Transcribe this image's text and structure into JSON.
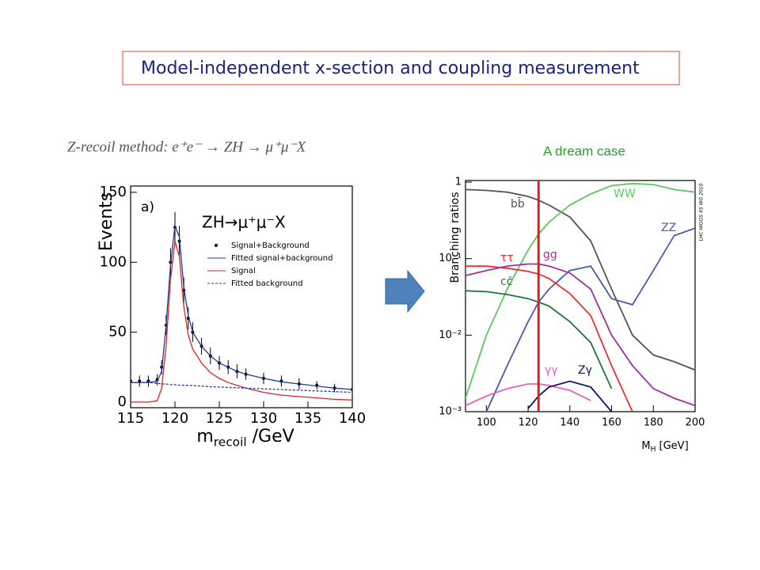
{
  "header": {
    "title": "Model-independent x-section and coupling measurement",
    "method": "Z-recoil method: e⁺e⁻ → ZH → μ⁺μ⁻X",
    "dream": "A dream case"
  },
  "chart_data": [
    {
      "type": "line",
      "ylabel": "Events",
      "xlabel_parts": [
        "m",
        "recoil",
        " /GeV"
      ],
      "annotations": [
        "a)",
        "ZH→μ⁺μ⁻X"
      ],
      "x": [
        115,
        116,
        117,
        118,
        118.5,
        119,
        119.5,
        120,
        120.5,
        121,
        121.5,
        122,
        123,
        124,
        125,
        126,
        127,
        128,
        130,
        132,
        134,
        136,
        138,
        140
      ],
      "xlim": [
        115,
        140
      ],
      "xticks": [
        115,
        120,
        125,
        130,
        135,
        140
      ],
      "ylim": [
        -4,
        154.5
      ],
      "yticks": [
        0,
        50,
        100,
        150
      ],
      "series": [
        {
          "name": "Signal+Background",
          "color": "#000000",
          "style": "points",
          "values": [
            15,
            15,
            15,
            16,
            25,
            55,
            100,
            125,
            115,
            80,
            60,
            50,
            40,
            33,
            28,
            25,
            22,
            20,
            17,
            15,
            13,
            12,
            10,
            9
          ],
          "errors": [
            4,
            4,
            4,
            4,
            5,
            7,
            10,
            11,
            11,
            9,
            8,
            7,
            6,
            6,
            5,
            5,
            5,
            4,
            4,
            4,
            4,
            3,
            3,
            3
          ]
        },
        {
          "name": "Fitted signal+background",
          "color": "#1f3a9e",
          "style": "line",
          "values": [
            14,
            14,
            14,
            15,
            22,
            55,
            98,
            126,
            118,
            82,
            62,
            50,
            40,
            33,
            28,
            25,
            22,
            20,
            17,
            14.5,
            13,
            11.5,
            10,
            9
          ]
        },
        {
          "name": "Signal",
          "color": "#e02020",
          "style": "line",
          "values": [
            0,
            0,
            0,
            1,
            10,
            40,
            88,
            115,
            104,
            68,
            48,
            38,
            28,
            21,
            17,
            14,
            12,
            10,
            7,
            5,
            4,
            3,
            2,
            1.5
          ]
        },
        {
          "name": "Fitted background",
          "color": "#1f3a9e",
          "style": "dashed",
          "values": [
            14,
            14,
            14,
            13.5,
            13,
            13,
            12.5,
            12.5,
            12.2,
            12,
            12,
            11.8,
            11.5,
            11,
            10.8,
            10.5,
            10.2,
            10,
            9.5,
            9,
            8.5,
            8,
            7.5,
            7
          ]
        }
      ]
    },
    {
      "type": "line",
      "log_y": true,
      "ylabel": "Branching ratios",
      "xlabel_parts": [
        "M",
        "H",
        " [GeV]"
      ],
      "side_note": "LHC HIGGS XS WG 2010",
      "vline_x": 125,
      "vline_color": "#e02020",
      "x": [
        90,
        100,
        110,
        120,
        125,
        130,
        140,
        150,
        160,
        170,
        180,
        190,
        200
      ],
      "xlim": [
        90,
        200
      ],
      "xticks": [
        100,
        120,
        140,
        160,
        180,
        200
      ],
      "ylim": [
        0.001,
        1.05
      ],
      "yticks": [
        {
          "value": 0.001,
          "label": "10⁻³"
        },
        {
          "value": 0.01,
          "label": "10⁻²"
        },
        {
          "value": 0.1,
          "label": "10⁻¹"
        },
        1
      ],
      "series": [
        {
          "name": "bb̄",
          "color": "#555555",
          "values": [
            0.8,
            0.78,
            0.74,
            0.65,
            0.58,
            0.5,
            0.35,
            0.17,
            0.04,
            0.01,
            0.0055,
            0.0045,
            0.0035
          ]
        },
        {
          "name": "WW",
          "color": "#5cc85c",
          "values": [
            0.0015,
            0.01,
            0.04,
            0.13,
            0.21,
            0.3,
            0.5,
            0.7,
            0.9,
            0.96,
            0.93,
            0.8,
            0.74
          ]
        },
        {
          "name": "ZZ",
          "color": "#4a5aa8",
          "values": [
            null,
            0.001,
            0.004,
            0.015,
            0.027,
            0.04,
            0.07,
            0.08,
            0.03,
            0.025,
            0.07,
            0.2,
            0.25
          ]
        },
        {
          "name": "ττ",
          "color": "#e83030",
          "values": [
            0.08,
            0.08,
            0.075,
            0.068,
            0.063,
            0.055,
            0.035,
            0.018,
            0.004,
            0.001,
            null,
            null,
            null
          ]
        },
        {
          "name": "cc̄",
          "color": "#1a7a30",
          "values": [
            0.038,
            0.037,
            0.034,
            0.03,
            0.027,
            0.024,
            0.015,
            0.008,
            0.002,
            null,
            null,
            null,
            null
          ]
        },
        {
          "name": "gg",
          "color": "#a030a0",
          "values": [
            0.06,
            0.07,
            0.08,
            0.085,
            0.085,
            0.08,
            0.065,
            0.04,
            0.01,
            0.004,
            0.002,
            0.0015,
            0.0012
          ]
        },
        {
          "name": "γγ",
          "color": "#e060c0",
          "values": [
            0.0012,
            0.0016,
            0.002,
            0.0023,
            0.0023,
            0.0022,
            0.0019,
            0.0014,
            null,
            null,
            null,
            null,
            null
          ]
        },
        {
          "name": "Zγ",
          "color": "#10106a",
          "values": [
            null,
            null,
            null,
            0.0011,
            0.0016,
            0.0021,
            0.0025,
            0.0021,
            0.001,
            null,
            null,
            null,
            null
          ]
        }
      ]
    }
  ]
}
